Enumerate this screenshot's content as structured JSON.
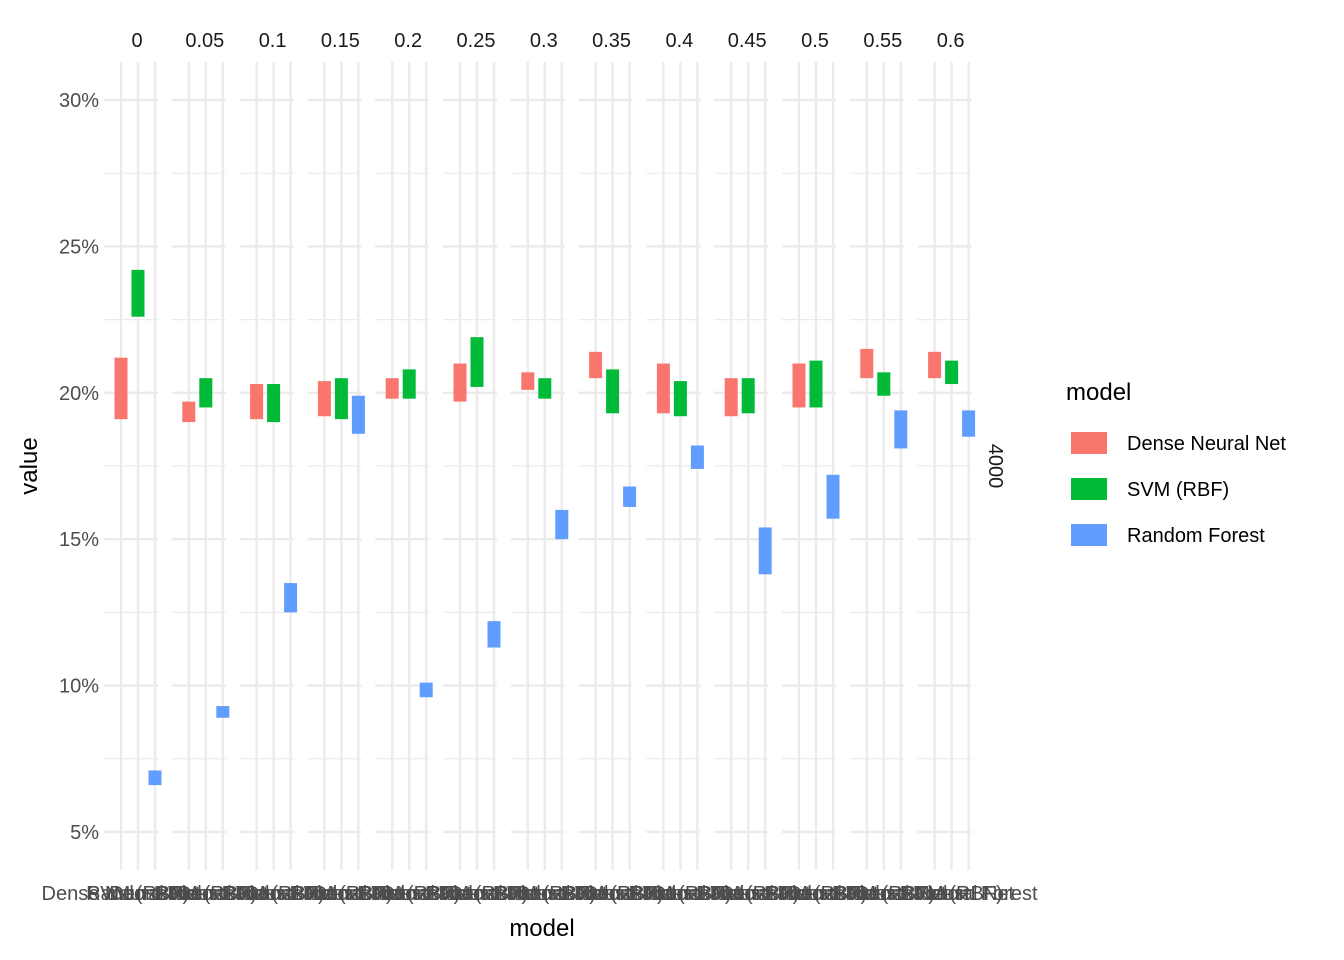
{
  "chart_data": {
    "type": "bar",
    "xlabel": "model",
    "ylabel": "value",
    "facet_row_label": "4000",
    "facets": [
      "0",
      "0.05",
      "0.1",
      "0.15",
      "0.2",
      "0.25",
      "0.3",
      "0.35",
      "0.4",
      "0.45",
      "0.5",
      "0.55",
      "0.6"
    ],
    "models": [
      "Dense Neural Net",
      "SVM (RBF)",
      "Random Forest"
    ],
    "x_tick_labels": [
      "Dense Neural Net",
      "SVM (RBF)",
      "Random Forest"
    ],
    "ylim": [
      3.7,
      31.3
    ],
    "y_ticks": [
      5,
      10,
      15,
      20,
      25,
      30
    ],
    "y_tick_labels": [
      "5%",
      "10%",
      "15%",
      "20%",
      "25%",
      "30%"
    ],
    "legend": {
      "title": "model",
      "position": "right",
      "items": [
        {
          "label": "Dense Neural Net",
          "color": "#F8766D"
        },
        {
          "label": "SVM (RBF)",
          "color": "#00BA38"
        },
        {
          "label": "Random Forest",
          "color": "#619CFF"
        }
      ]
    },
    "series": [
      {
        "name": "Dense Neural Net",
        "color": "#F8766D",
        "ranges": [
          [
            19.1,
            21.2
          ],
          [
            19.0,
            19.7
          ],
          [
            19.1,
            20.3
          ],
          [
            19.2,
            20.4
          ],
          [
            19.8,
            20.5
          ],
          [
            19.7,
            21.0
          ],
          [
            20.1,
            20.7
          ],
          [
            20.5,
            21.4
          ],
          [
            19.3,
            21.0
          ],
          [
            19.2,
            20.5
          ],
          [
            19.5,
            21.0
          ],
          [
            20.5,
            21.5
          ],
          [
            20.5,
            21.4
          ]
        ]
      },
      {
        "name": "SVM (RBF)",
        "color": "#00BA38",
        "ranges": [
          [
            22.6,
            24.2
          ],
          [
            19.5,
            20.5
          ],
          [
            19.0,
            20.3
          ],
          [
            19.1,
            20.5
          ],
          [
            19.8,
            20.8
          ],
          [
            20.2,
            21.9
          ],
          [
            19.8,
            20.5
          ],
          [
            19.3,
            20.8
          ],
          [
            19.2,
            20.4
          ],
          [
            19.3,
            20.5
          ],
          [
            19.5,
            21.1
          ],
          [
            19.9,
            20.7
          ],
          [
            20.3,
            21.1
          ]
        ]
      },
      {
        "name": "Random Forest",
        "color": "#619CFF",
        "ranges": [
          [
            6.6,
            7.1
          ],
          [
            8.9,
            9.3
          ],
          [
            12.5,
            13.5
          ],
          [
            18.6,
            19.9
          ],
          [
            9.6,
            10.1
          ],
          [
            11.3,
            12.2
          ],
          [
            15.0,
            16.0
          ],
          [
            16.1,
            16.8
          ],
          [
            17.4,
            18.2
          ],
          [
            13.8,
            15.4
          ],
          [
            15.7,
            17.2
          ],
          [
            18.1,
            19.4
          ],
          [
            18.5,
            19.4
          ]
        ]
      }
    ]
  }
}
